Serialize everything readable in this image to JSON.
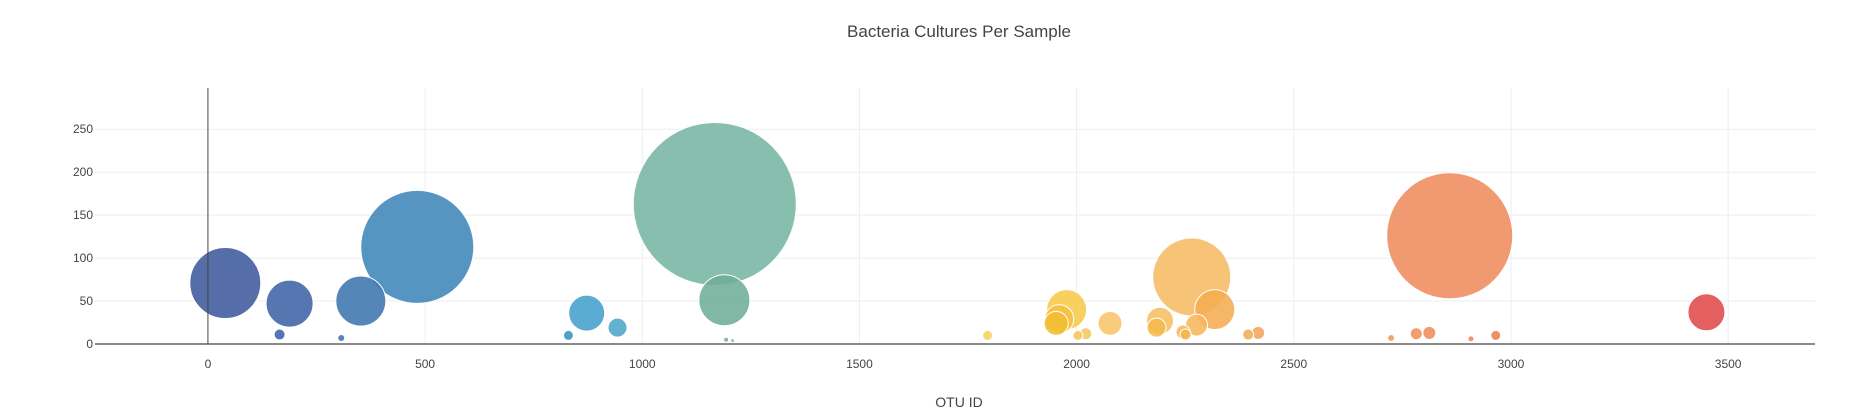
{
  "chart_data": {
    "type": "scatter",
    "title": "Bacteria Cultures Per Sample",
    "xlabel": "OTU ID",
    "ylabel": "",
    "xlim": [
      -260,
      3700
    ],
    "ylim": [
      0,
      298
    ],
    "x_ticks": [
      0,
      500,
      1000,
      1500,
      2000,
      2500,
      3000,
      3500
    ],
    "y_ticks": [
      0,
      50,
      100,
      150,
      200,
      250
    ],
    "grid": true,
    "legend": "none",
    "points": [
      {
        "x": 40,
        "y": 71,
        "size": 71,
        "color": "#3d5a9e"
      },
      {
        "x": 188,
        "y": 47,
        "size": 47,
        "color": "#3f63a6"
      },
      {
        "x": 165,
        "y": 11,
        "size": 11,
        "color": "#3f63a6"
      },
      {
        "x": 307,
        "y": 7,
        "size": 7,
        "color": "#4270ac"
      },
      {
        "x": 352,
        "y": 50,
        "size": 50,
        "color": "#3c75ad"
      },
      {
        "x": 482,
        "y": 113,
        "size": 113,
        "color": "#3f86b9"
      },
      {
        "x": 830,
        "y": 10,
        "size": 10,
        "color": "#3a93c3"
      },
      {
        "x": 872,
        "y": 36,
        "size": 36,
        "color": "#43a0cc"
      },
      {
        "x": 943,
        "y": 19,
        "size": 19,
        "color": "#4ba6c8"
      },
      {
        "x": 1167,
        "y": 163,
        "size": 163,
        "color": "#78b5a3"
      },
      {
        "x": 1189,
        "y": 51,
        "size": 51,
        "color": "#6fae98"
      },
      {
        "x": 1193,
        "y": 5,
        "size": 5,
        "color": "#6fae98"
      },
      {
        "x": 1208,
        "y": 4,
        "size": 4,
        "color": "#86ba9f"
      },
      {
        "x": 1795,
        "y": 10,
        "size": 10,
        "color": "#f4d35e"
      },
      {
        "x": 1977,
        "y": 40,
        "size": 40,
        "color": "#f7c94a"
      },
      {
        "x": 1960,
        "y": 29,
        "size": 29,
        "color": "#f5c240"
      },
      {
        "x": 1953,
        "y": 24,
        "size": 24,
        "color": "#f3bd35"
      },
      {
        "x": 2003,
        "y": 10,
        "size": 10,
        "color": "#f5c55a"
      },
      {
        "x": 2021,
        "y": 12,
        "size": 12,
        "color": "#f6c760"
      },
      {
        "x": 2077,
        "y": 24,
        "size": 24,
        "color": "#f7c56a"
      },
      {
        "x": 2192,
        "y": 27,
        "size": 27,
        "color": "#f6bf62"
      },
      {
        "x": 2184,
        "y": 19,
        "size": 19,
        "color": "#f5b94f"
      },
      {
        "x": 2245,
        "y": 14,
        "size": 14,
        "color": "#f5b858"
      },
      {
        "x": 2251,
        "y": 11,
        "size": 11,
        "color": "#f4b350"
      },
      {
        "x": 2265,
        "y": 78,
        "size": 78,
        "color": "#f6bb63"
      },
      {
        "x": 2276,
        "y": 22,
        "size": 22,
        "color": "#f6b75d"
      },
      {
        "x": 2318,
        "y": 40,
        "size": 40,
        "color": "#f4ad50"
      },
      {
        "x": 2395,
        "y": 11,
        "size": 11,
        "color": "#f2ab5b"
      },
      {
        "x": 2418,
        "y": 13,
        "size": 13,
        "color": "#f1a55a"
      },
      {
        "x": 2724,
        "y": 7,
        "size": 7,
        "color": "#f09a58"
      },
      {
        "x": 2782,
        "y": 12,
        "size": 12,
        "color": "#ee8f5b"
      },
      {
        "x": 2812,
        "y": 13,
        "size": 13,
        "color": "#ed8c5b"
      },
      {
        "x": 2908,
        "y": 6,
        "size": 6,
        "color": "#ee8659"
      },
      {
        "x": 2965,
        "y": 10,
        "size": 10,
        "color": "#ed8051"
      },
      {
        "x": 2859,
        "y": 126,
        "size": 126,
        "color": "#ef8c5f"
      },
      {
        "x": 3450,
        "y": 37,
        "size": 37,
        "color": "#e04a4a"
      }
    ]
  }
}
